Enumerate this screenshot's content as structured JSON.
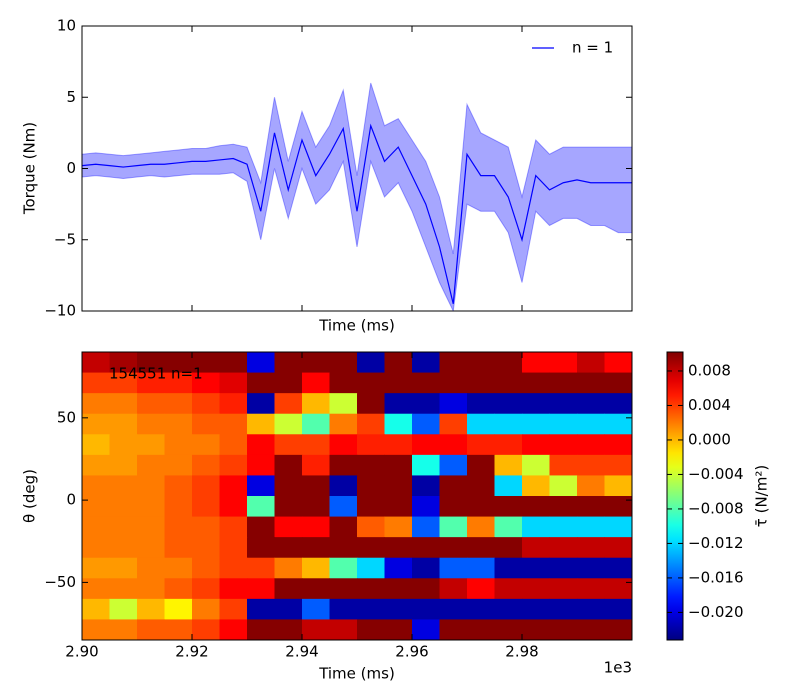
{
  "chart_data": [
    {
      "type": "line",
      "xlabel": "Time (ms)",
      "ylabel": "Torque (Nm)",
      "xlim": [
        2900,
        3000
      ],
      "xticks": [
        2900,
        2920,
        2940,
        2960,
        2980
      ],
      "ylim": [
        -10,
        10
      ],
      "yticks": [
        {
          "value": 10,
          "label": "10"
        },
        {
          "value": 5,
          "label": "5"
        },
        {
          "value": 0,
          "label": "0"
        },
        {
          "value": -5,
          "label": "−5"
        },
        {
          "value": -10,
          "label": "−10"
        }
      ],
      "legend": "upper right",
      "x": [
        2900,
        2902.5,
        2905,
        2907.5,
        2910,
        2912.5,
        2915,
        2917.5,
        2920,
        2922.5,
        2925,
        2927.5,
        2930,
        2932.5,
        2935,
        2937.5,
        2940,
        2942.5,
        2945,
        2947.5,
        2950,
        2952.5,
        2955,
        2957.5,
        2960,
        2962.5,
        2965,
        2967.5,
        2970,
        2972.5,
        2975,
        2977.5,
        2980,
        2982.5,
        2985,
        2987.5,
        2990,
        2992.5,
        2995,
        2997.5,
        3000
      ],
      "series": [
        {
          "name": "n = 1",
          "color": "#0000ff",
          "values": [
            0.2,
            0.3,
            0.2,
            0.1,
            0.2,
            0.3,
            0.3,
            0.4,
            0.5,
            0.5,
            0.6,
            0.7,
            0.3,
            -3.0,
            2.5,
            -1.5,
            2.0,
            -0.5,
            1.0,
            2.8,
            -3.0,
            3.0,
            0.5,
            1.5,
            -0.5,
            -2.5,
            -5.5,
            -9.5,
            1.0,
            -0.5,
            -0.5,
            -2.0,
            -5.0,
            -0.5,
            -1.5,
            -1.0,
            -0.8,
            -1.0,
            -1.0,
            -1.0,
            -1.0
          ]
        }
      ],
      "band": {
        "color": "#0000ff",
        "upper": [
          1.0,
          1.1,
          1.0,
          0.9,
          1.0,
          1.1,
          1.2,
          1.3,
          1.4,
          1.4,
          1.6,
          1.7,
          1.5,
          -1.0,
          5.0,
          0.5,
          4.0,
          1.5,
          3.0,
          5.5,
          -0.5,
          6.0,
          3.0,
          3.5,
          2.0,
          0.5,
          -2.0,
          -6,
          4.5,
          2.5,
          2.0,
          1.5,
          -2.0,
          2.0,
          1.0,
          1.5,
          1.5,
          1.5,
          1.5,
          1.5,
          1.5
        ],
        "lower": [
          -0.6,
          -0.5,
          -0.6,
          -0.7,
          -0.6,
          -0.5,
          -0.6,
          -0.5,
          -0.4,
          -0.4,
          -0.4,
          -0.3,
          -0.9,
          -5.0,
          0.0,
          -3.5,
          0.0,
          -2.5,
          -1.5,
          0.5,
          -5.5,
          0.5,
          -2.0,
          -1.0,
          -3.0,
          -5.5,
          -8.0,
          -10,
          -2.5,
          -3.0,
          -3.0,
          -4.5,
          -8.0,
          -3.0,
          -4.0,
          -3.5,
          -3.5,
          -4.0,
          -4.0,
          -4.5,
          -4.5
        ]
      }
    },
    {
      "type": "heatmap",
      "xlabel": "Time (ms)",
      "ylabel": "θ (deg)",
      "x_offset_label": "1e3",
      "annotation": "154551 n=1",
      "colorbar_label": "τ̄  (N/m²)",
      "colormap": "jet",
      "xlim": [
        2900,
        3000
      ],
      "xticks": [
        {
          "value": 2900,
          "label": "2.90"
        },
        {
          "value": 2920,
          "label": "2.92"
        },
        {
          "value": 2940,
          "label": "2.94"
        },
        {
          "value": 2960,
          "label": "2.96"
        },
        {
          "value": 2980,
          "label": "2.98"
        }
      ],
      "ylim": [
        -85,
        90
      ],
      "yticks": [
        {
          "value": 50,
          "label": "50"
        },
        {
          "value": 0,
          "label": "0"
        },
        {
          "value": -50,
          "label": "−50"
        }
      ],
      "clim": [
        -0.0232,
        0.0102
      ],
      "cticks": [
        {
          "value": 0.008,
          "label": "0.008"
        },
        {
          "value": 0.004,
          "label": "0.004"
        },
        {
          "value": 0.0,
          "label": "0.000"
        },
        {
          "value": -0.004,
          "label": "−0.004"
        },
        {
          "value": -0.008,
          "label": "−0.008"
        },
        {
          "value": -0.012,
          "label": "−0.012"
        },
        {
          "value": -0.016,
          "label": "−0.016"
        },
        {
          "value": -0.02,
          "label": "−0.020"
        }
      ],
      "x": [
        2902.5,
        2907.5,
        2912.5,
        2917.5,
        2922.5,
        2927.5,
        2932.5,
        2937.5,
        2942.5,
        2947.5,
        2952.5,
        2957.5,
        2962.5,
        2967.5,
        2972.5,
        2977.5,
        2982.5,
        2987.5,
        2992.5,
        2997.5
      ],
      "theta": [
        83.75,
        71.25,
        58.75,
        46.25,
        33.75,
        21.25,
        8.75,
        -3.75,
        -16.25,
        -28.75,
        -41.25,
        -53.75,
        -66.25,
        -78.75
      ],
      "z": [
        [
          0.008,
          0.009,
          0.01,
          0.01,
          0.01,
          0.01,
          -0.02,
          0.01,
          0.01,
          0.01,
          -0.022,
          0.01,
          -0.022,
          0.01,
          0.01,
          0.01,
          0.006,
          0.006,
          0.008,
          0.006
        ],
        [
          0.004,
          0.004,
          0.005,
          0.005,
          0.006,
          0.007,
          0.01,
          0.01,
          0.006,
          0.01,
          0.01,
          0.01,
          0.01,
          0.01,
          0.01,
          0.01,
          0.01,
          0.01,
          0.01,
          0.01
        ],
        [
          0.002,
          0.002,
          0.003,
          0.003,
          0.004,
          0.005,
          -0.022,
          0.004,
          0.0,
          -0.004,
          0.01,
          -0.022,
          -0.022,
          -0.02,
          -0.022,
          -0.022,
          -0.022,
          -0.022,
          -0.022,
          -0.022
        ],
        [
          0.001,
          0.001,
          0.002,
          0.002,
          0.003,
          0.003,
          0.0,
          -0.004,
          -0.008,
          0.002,
          0.004,
          -0.01,
          -0.016,
          0.004,
          -0.012,
          -0.012,
          -0.012,
          -0.012,
          -0.012,
          -0.012
        ],
        [
          0.0,
          0.001,
          0.001,
          0.002,
          0.002,
          0.003,
          0.006,
          0.004,
          0.004,
          0.006,
          0.005,
          0.005,
          0.006,
          0.006,
          0.005,
          0.005,
          0.006,
          0.006,
          0.006,
          0.006
        ],
        [
          0.001,
          0.001,
          0.002,
          0.002,
          0.003,
          0.004,
          0.006,
          0.01,
          0.005,
          0.01,
          0.01,
          0.01,
          -0.01,
          -0.016,
          0.01,
          0.0,
          -0.004,
          0.004,
          0.004,
          0.004
        ],
        [
          0.002,
          0.002,
          0.002,
          0.003,
          0.004,
          0.006,
          -0.02,
          0.01,
          0.01,
          -0.022,
          0.01,
          0.01,
          -0.022,
          0.01,
          0.01,
          -0.012,
          0.0,
          -0.004,
          0.002,
          0.0
        ],
        [
          0.002,
          0.002,
          0.002,
          0.003,
          0.004,
          0.006,
          -0.008,
          0.01,
          0.01,
          -0.016,
          0.01,
          0.01,
          -0.02,
          0.01,
          0.01,
          0.01,
          0.01,
          0.01,
          0.01,
          0.01
        ],
        [
          0.002,
          0.002,
          0.002,
          0.003,
          0.003,
          0.004,
          0.01,
          0.006,
          0.006,
          0.01,
          0.003,
          0.002,
          -0.016,
          -0.008,
          0.002,
          -0.008,
          -0.012,
          -0.012,
          -0.012,
          -0.012
        ],
        [
          0.002,
          0.002,
          0.002,
          0.003,
          0.003,
          0.004,
          0.01,
          0.01,
          0.01,
          0.01,
          0.01,
          0.01,
          0.01,
          0.01,
          0.01,
          0.01,
          0.008,
          0.008,
          0.008,
          0.008
        ],
        [
          0.001,
          0.001,
          0.002,
          0.002,
          0.003,
          0.004,
          0.004,
          0.002,
          0.0,
          -0.008,
          -0.012,
          -0.02,
          -0.022,
          -0.016,
          -0.016,
          -0.022,
          -0.022,
          -0.022,
          -0.022,
          -0.022
        ],
        [
          0.002,
          0.002,
          0.002,
          0.003,
          0.004,
          0.006,
          0.006,
          0.01,
          0.01,
          0.01,
          0.01,
          0.01,
          0.01,
          0.008,
          0.006,
          0.008,
          0.008,
          0.008,
          0.008,
          0.008
        ],
        [
          0.0,
          -0.004,
          0.0,
          -0.002,
          0.002,
          0.004,
          -0.022,
          -0.022,
          -0.016,
          -0.022,
          -0.022,
          -0.022,
          -0.022,
          -0.022,
          -0.022,
          -0.022,
          -0.022,
          -0.022,
          -0.022,
          -0.022
        ],
        [
          0.002,
          0.002,
          0.003,
          0.003,
          0.004,
          0.006,
          0.01,
          0.01,
          0.008,
          0.008,
          0.01,
          0.01,
          -0.02,
          0.01,
          0.01,
          0.01,
          0.01,
          0.01,
          0.01,
          0.01
        ]
      ]
    }
  ]
}
